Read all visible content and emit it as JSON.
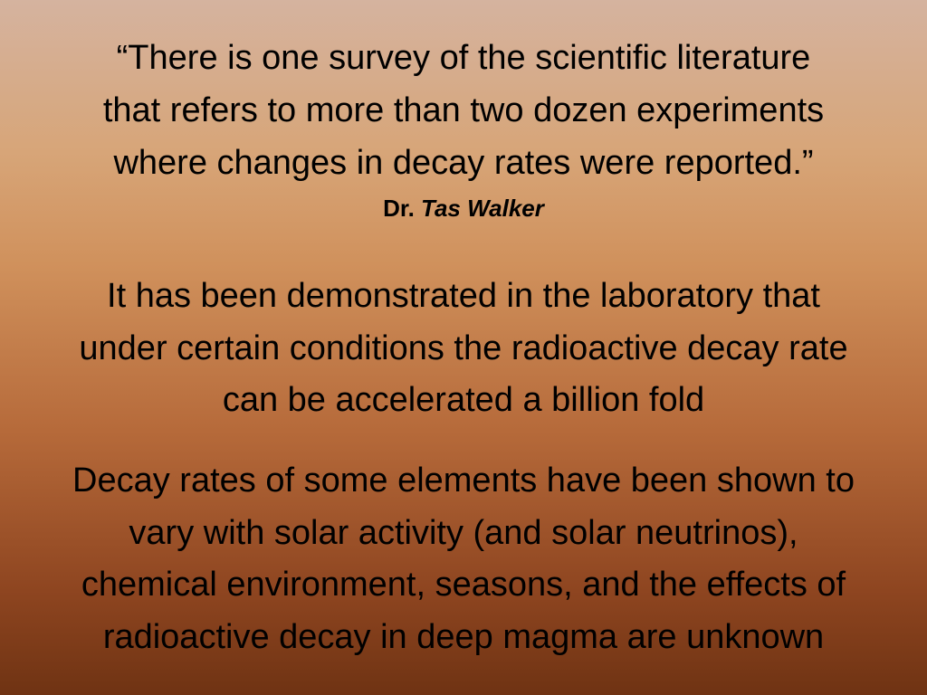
{
  "quote": {
    "lines": [
      "“There is one survey of the scientific literature",
      "that refers to more than two dozen experiments",
      "where changes in decay rates were reported.”"
    ]
  },
  "attribution": {
    "title": "Dr.",
    "name": "Tas Walker"
  },
  "paragraphs": [
    {
      "lines": [
        "It has been demonstrated in the laboratory that",
        "under certain conditions the radioactive decay rate",
        "can be accelerated a billion fold"
      ]
    },
    {
      "lines": [
        "Decay rates of some elements have been shown to",
        "vary with solar activity (and solar neutrinos),",
        "chemical environment, seasons, and the effects of",
        "radioactive decay in deep magma are unknown"
      ]
    }
  ]
}
